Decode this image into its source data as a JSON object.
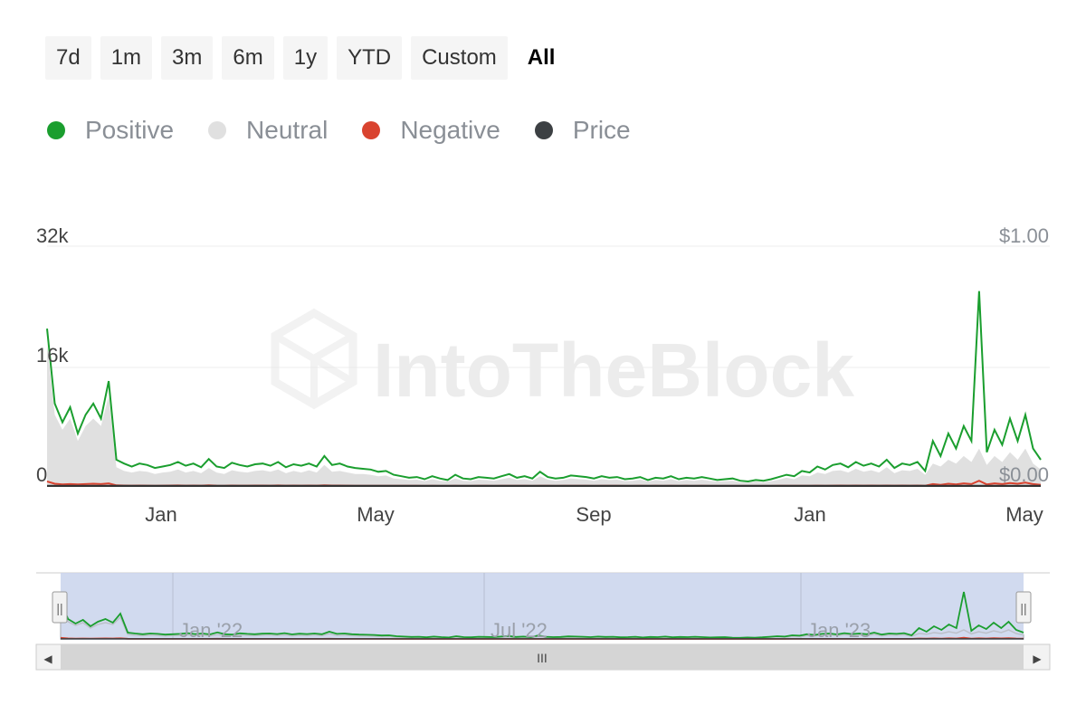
{
  "range_buttons": {
    "b7d": "7d",
    "b1m": "1m",
    "b3m": "3m",
    "b6m": "6m",
    "b1y": "1y",
    "bytd": "YTD",
    "bcustom": "Custom",
    "ball": "All"
  },
  "legend": [
    {
      "label": "Positive",
      "color": "#1a9e2e"
    },
    {
      "label": "Neutral",
      "color": "#e0e0e0"
    },
    {
      "label": "Negative",
      "color": "#d9432f"
    },
    {
      "label": "Price",
      "color": "#3c4043"
    }
  ],
  "watermark": "IntoTheBlock",
  "chart_data": {
    "type": "area",
    "x_ticks": [
      "Jan",
      "May",
      "Sep",
      "Jan",
      "May"
    ],
    "y_left_ticks": [
      "32k",
      "16k",
      "0"
    ],
    "y_left_values": [
      32000,
      16000,
      0
    ],
    "y_right_ticks": [
      "$1.00",
      "$0.00"
    ],
    "ylim_left": [
      0,
      32000
    ],
    "ylim_right": [
      0,
      1
    ],
    "grid": true,
    "legend_position": "top-left",
    "series": [
      {
        "name": "Positive",
        "color": "#1a9e2e",
        "values": [
          21000,
          11000,
          8500,
          10500,
          7000,
          9500,
          11000,
          9000,
          14000,
          3500,
          3000,
          2600,
          3000,
          2800,
          2400,
          2600,
          2800,
          3200,
          2700,
          3000,
          2500,
          3600,
          2600,
          2400,
          3100,
          2800,
          2600,
          2900,
          3000,
          2700,
          3200,
          2500,
          2900,
          2700,
          3000,
          2600,
          4000,
          2800,
          3000,
          2600,
          2400,
          2300,
          2200,
          1900,
          2000,
          1500,
          1300,
          1100,
          1200,
          900,
          1300,
          1000,
          800,
          1500,
          1000,
          900,
          1200,
          1100,
          1000,
          1300,
          1600,
          1100,
          1300,
          1000,
          1900,
          1200,
          1000,
          1100,
          1400,
          1300,
          1200,
          1000,
          1300,
          1100,
          1200,
          900,
          1000,
          1200,
          800,
          1100,
          1000,
          1300,
          900,
          1100,
          1000,
          1200,
          1000,
          800,
          900,
          1000,
          700,
          600,
          800,
          700,
          900,
          1200,
          1500,
          1300,
          2000,
          1800,
          2600,
          2200,
          2800,
          3000,
          2500,
          3200,
          2700,
          3000,
          2600,
          3500,
          2400,
          3000,
          2800,
          3200,
          2000,
          6000,
          4000,
          7000,
          5000,
          8000,
          6000,
          26000,
          4500,
          7500,
          5500,
          9000,
          6000,
          9500,
          5000,
          3500
        ]
      },
      {
        "name": "Neutral",
        "color": "#e0e0e0",
        "values": [
          19000,
          9500,
          7500,
          9000,
          6000,
          8000,
          9000,
          8000,
          12000,
          2500,
          2000,
          1800,
          2000,
          1900,
          1600,
          1800,
          1900,
          2200,
          1800,
          2000,
          1700,
          2400,
          1800,
          1600,
          2100,
          1900,
          1800,
          2000,
          2100,
          1900,
          2200,
          1700,
          2000,
          1800,
          2100,
          1800,
          2800,
          1900,
          2000,
          1800,
          1600,
          1600,
          1500,
          1300,
          1400,
          1000,
          900,
          800,
          850,
          650,
          900,
          700,
          600,
          1000,
          700,
          650,
          850,
          800,
          700,
          900,
          1100,
          800,
          900,
          700,
          1300,
          850,
          700,
          800,
          1000,
          900,
          850,
          700,
          900,
          800,
          850,
          650,
          700,
          850,
          600,
          800,
          700,
          900,
          650,
          800,
          700,
          850,
          700,
          600,
          650,
          700,
          500,
          450,
          600,
          500,
          650,
          850,
          1100,
          900,
          1400,
          1300,
          1800,
          1600,
          2000,
          2100,
          1800,
          2300,
          1900,
          2100,
          1800,
          2500,
          1700,
          2100,
          2000,
          2300,
          1500,
          3000,
          2600,
          3500,
          3000,
          4000,
          3200,
          5000,
          2800,
          4000,
          3200,
          4500,
          3500,
          5000,
          3000,
          2200
        ]
      },
      {
        "name": "Negative",
        "color": "#d9432f",
        "values": [
          600,
          300,
          200,
          250,
          200,
          250,
          300,
          250,
          350,
          80,
          60,
          50,
          60,
          50,
          40,
          50,
          60,
          70,
          50,
          60,
          50,
          80,
          50,
          40,
          60,
          50,
          50,
          60,
          60,
          50,
          70,
          50,
          60,
          50,
          60,
          50,
          90,
          60,
          60,
          50,
          40,
          40,
          40,
          30,
          30,
          20,
          20,
          20,
          20,
          15,
          20,
          15,
          15,
          25,
          15,
          15,
          20,
          20,
          15,
          20,
          30,
          20,
          20,
          15,
          30,
          20,
          15,
          20,
          25,
          20,
          20,
          15,
          20,
          20,
          20,
          15,
          15,
          20,
          15,
          20,
          15,
          20,
          15,
          20,
          15,
          20,
          15,
          15,
          15,
          15,
          10,
          10,
          15,
          10,
          15,
          20,
          25,
          20,
          35,
          30,
          45,
          40,
          50,
          55,
          45,
          60,
          50,
          55,
          45,
          65,
          45,
          55,
          50,
          60,
          40,
          250,
          150,
          300,
          200,
          350,
          250,
          700,
          200,
          350,
          250,
          400,
          300,
          450,
          250,
          150
        ]
      },
      {
        "name": "Price",
        "color": "#3c4043",
        "values": [
          0.002,
          0.002,
          0.002,
          0.002,
          0.002,
          0.002,
          0.002,
          0.002,
          0.002,
          0.002,
          0.002,
          0.002,
          0.002,
          0.002,
          0.002,
          0.002,
          0.002,
          0.002,
          0.002,
          0.002,
          0.002,
          0.002,
          0.002,
          0.002,
          0.002,
          0.002,
          0.002,
          0.002,
          0.002,
          0.002,
          0.002,
          0.002,
          0.002,
          0.002,
          0.002,
          0.002,
          0.002,
          0.002,
          0.002,
          0.002,
          0.002,
          0.002,
          0.002,
          0.002,
          0.002,
          0.002,
          0.002,
          0.002,
          0.002,
          0.002,
          0.002,
          0.002,
          0.002,
          0.002,
          0.002,
          0.002,
          0.002,
          0.002,
          0.002,
          0.002,
          0.002,
          0.002,
          0.002,
          0.002,
          0.002,
          0.002,
          0.002,
          0.002,
          0.002,
          0.002,
          0.002,
          0.002,
          0.002,
          0.002,
          0.002,
          0.002,
          0.002,
          0.002,
          0.002,
          0.002,
          0.002,
          0.002,
          0.002,
          0.002,
          0.002,
          0.002,
          0.002,
          0.002,
          0.002,
          0.002,
          0.002,
          0.002,
          0.002,
          0.002,
          0.002,
          0.002,
          0.002,
          0.002,
          0.002,
          0.002,
          0.002,
          0.002,
          0.002,
          0.002,
          0.002,
          0.002,
          0.002,
          0.002,
          0.002,
          0.002,
          0.002,
          0.002,
          0.002,
          0.002,
          0.002,
          0.002,
          0.002,
          0.002,
          0.002,
          0.002,
          0.002,
          0.002,
          0.002,
          0.002,
          0.002,
          0.002,
          0.002,
          0.002,
          0.002,
          0.002
        ]
      }
    ]
  },
  "navigator": {
    "labels": [
      "Jan '22",
      "Jul '22",
      "Jan '23"
    ],
    "scroll_grip": "III",
    "handle_glyph": "||",
    "left_arrow": "◀",
    "right_arrow": "▶",
    "selection": [
      0,
      1
    ]
  }
}
